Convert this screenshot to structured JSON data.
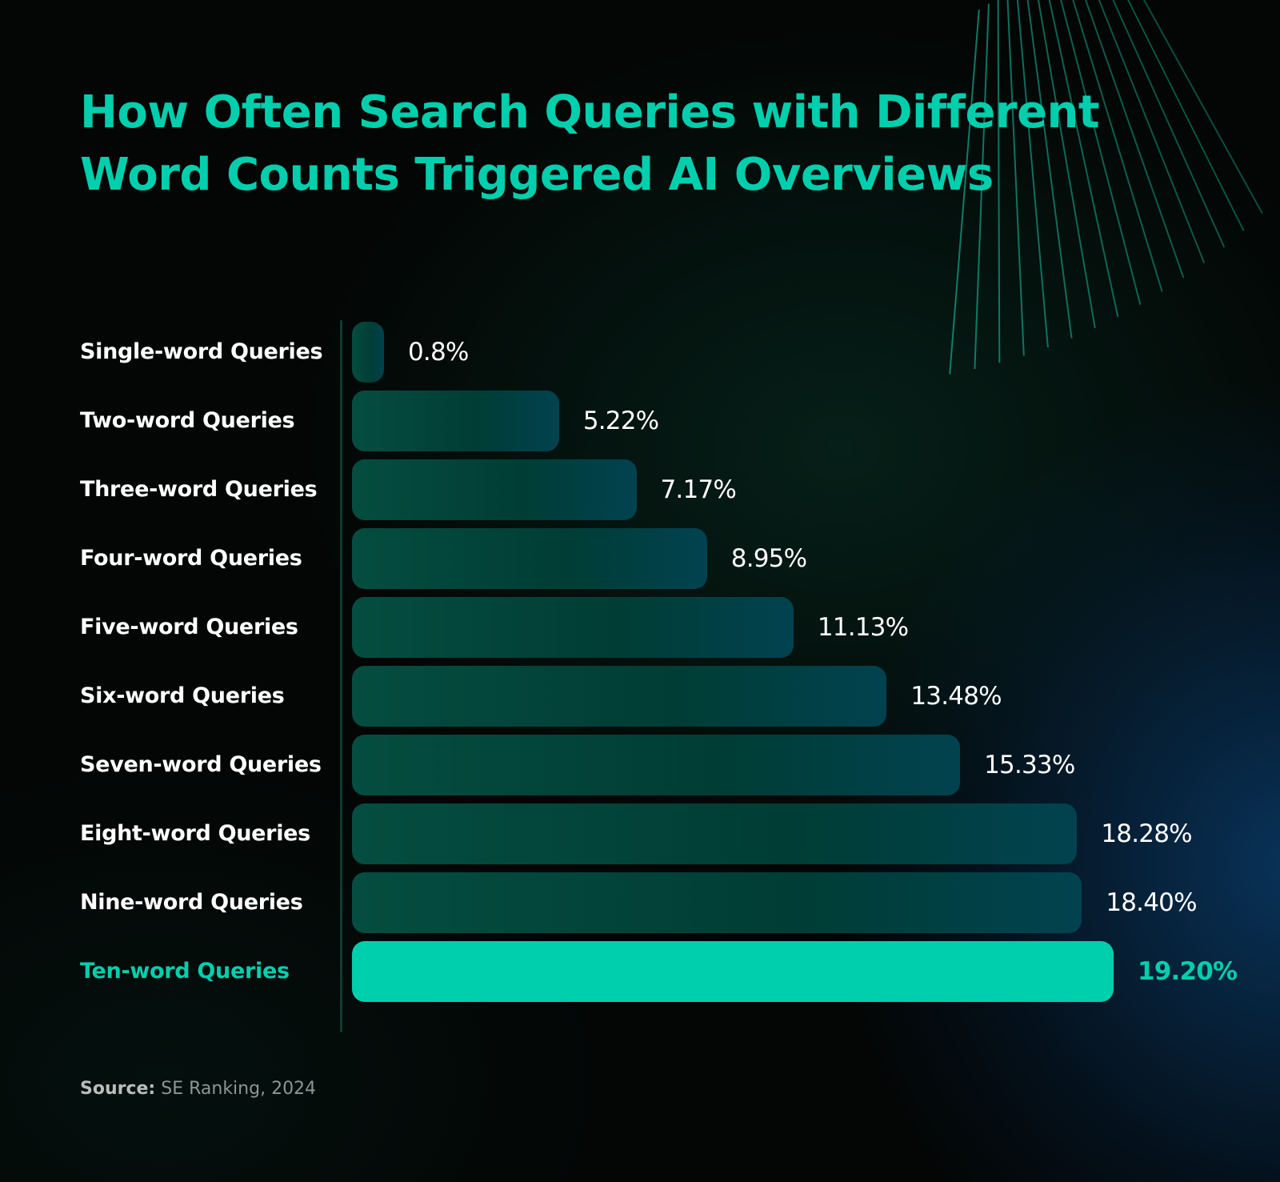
{
  "title": "How Often Search Queries with Different Word Counts Triggered AI Overviews",
  "source": {
    "label": "Source:",
    "text": "SE Ranking, 2024"
  },
  "colors": {
    "accent": "#00cfae",
    "bar": "#054d40",
    "background": "#030605",
    "label": "#ffffff"
  },
  "chart_data": {
    "type": "bar",
    "orientation": "horizontal",
    "title": "How Often Search Queries with Different Word Counts Triggered AI Overviews",
    "xlabel": "",
    "ylabel": "",
    "xlim": [
      0,
      19.2
    ],
    "grid": false,
    "legend": "none",
    "categories": [
      "Single-word Queries",
      "Two-word Queries",
      "Three-word Queries",
      "Four-word Queries",
      "Five-word Queries",
      "Six-word Queries",
      "Seven-word Queries",
      "Eight-word Queries",
      "Nine-word Queries",
      "Ten-word Queries"
    ],
    "values": [
      0.8,
      5.22,
      7.17,
      8.95,
      11.13,
      13.48,
      15.33,
      18.28,
      18.4,
      19.2
    ],
    "value_labels": [
      "0.8%",
      "5.22%",
      "7.17%",
      "8.95%",
      "11.13%",
      "13.48%",
      "15.33%",
      "18.28%",
      "18.40%",
      "19.20%"
    ],
    "highlight_index": 9
  }
}
